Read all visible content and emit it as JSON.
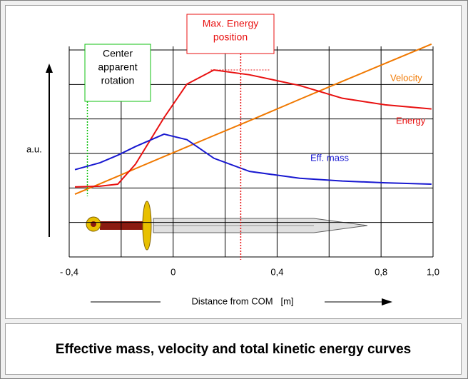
{
  "chart_data": {
    "type": "line",
    "caption": "Effective mass, velocity and total kinetic energy curves",
    "ylabel": "a.u.",
    "xlabel": "Distance from COM   [m]",
    "xlim": [
      -0.4,
      1.0
    ],
    "ylim": [
      0,
      6
    ],
    "xticks": [
      {
        "value": -0.4,
        "label": "- 0,4"
      },
      0,
      {
        "value": 0.4,
        "label": "0,4"
      },
      {
        "value": 0.8,
        "label": "0,8"
      },
      {
        "value": 1.0,
        "label": "1,0"
      }
    ],
    "yticks": [
      {
        "value": 0,
        "label": null
      },
      {
        "value": 1,
        "label": null
      },
      {
        "value": 2,
        "label": null
      },
      {
        "value": 3,
        "label": null
      },
      {
        "value": 4,
        "label": null
      },
      {
        "value": 5,
        "label": null
      },
      {
        "value": 6,
        "label": null
      }
    ],
    "grid": true,
    "x": [
      -0.378,
      -0.282,
      -0.213,
      -0.145,
      -0.035,
      0.053,
      0.157,
      0.294,
      0.487,
      0.651,
      0.816,
      0.994
    ],
    "series": [
      {
        "name": "Velocity",
        "color": "#f07800",
        "values": [
          1.82,
          2.12,
          2.34,
          2.56,
          2.91,
          3.19,
          3.52,
          3.95,
          4.57,
          5.09,
          5.61,
          6.17
        ]
      },
      {
        "name": "Energy",
        "color": "#e81010",
        "values": [
          2.03,
          2.05,
          2.11,
          2.69,
          4.04,
          5.01,
          5.42,
          5.28,
          4.97,
          4.6,
          4.41,
          4.29
        ]
      },
      {
        "name": "Eff. mass",
        "color": "#1818d0",
        "values": [
          2.53,
          2.73,
          2.95,
          3.2,
          3.56,
          3.4,
          2.86,
          2.48,
          2.28,
          2.2,
          2.15,
          2.11
        ]
      }
    ],
    "annotations": [
      {
        "lines": [
          "Center",
          "apparent",
          "rotation"
        ],
        "x": -0.33,
        "color": "#10c010"
      },
      {
        "lines": [
          "Max. Energy",
          "position"
        ],
        "x": 0.26,
        "color": "#e81010"
      }
    ]
  }
}
